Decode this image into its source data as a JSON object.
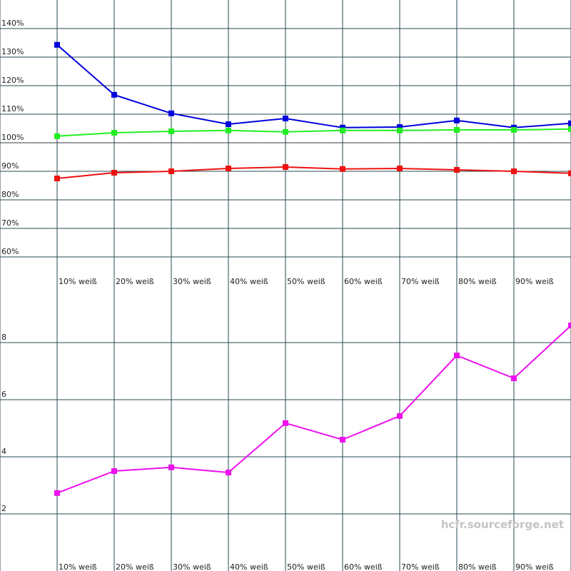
{
  "chart_data": [
    {
      "type": "line",
      "categories": [
        "10% weiß",
        "20% weiß",
        "30% weiß",
        "40% weiß",
        "50% weiß",
        "60% weiß",
        "70% weiß",
        "80% weiß",
        "90% weiß",
        null
      ],
      "ylim": [
        60,
        150
      ],
      "yticks": [
        {
          "value": 60,
          "label": "60%"
        },
        {
          "value": 70,
          "label": "70%"
        },
        {
          "value": 80,
          "label": "80%"
        },
        {
          "value": 90,
          "label": "90%"
        },
        {
          "value": 100,
          "label": "100%"
        },
        {
          "value": 110,
          "label": "110%"
        },
        {
          "value": 120,
          "label": "120%"
        },
        {
          "value": 130,
          "label": "130%"
        },
        {
          "value": 140,
          "label": "140%"
        }
      ],
      "reference_line": 100,
      "grid": true,
      "series": [
        {
          "color": "#0000dd",
          "values": [
            134.3,
            116.8,
            110.3,
            106.5,
            108.5,
            105.3,
            105.5,
            107.8,
            105.3,
            106.8
          ]
        },
        {
          "color": "#22ee22",
          "values": [
            102.3,
            103.5,
            104,
            104.3,
            103.8,
            104.3,
            104.3,
            104.5,
            104.5,
            104.8
          ]
        },
        {
          "color": "#ee1111",
          "values": [
            87.5,
            89.5,
            90,
            91,
            91.5,
            90.8,
            91,
            90.5,
            90,
            89.3
          ]
        }
      ]
    },
    {
      "type": "line",
      "categories": [
        "10% weiß",
        "20% weiß",
        "30% weiß",
        "40% weiß",
        "50% weiß",
        "60% weiß",
        "70% weiß",
        "80% weiß",
        "90% weiß",
        null
      ],
      "ylim": [
        1,
        10
      ],
      "yticks": [
        2,
        4,
        6,
        8
      ],
      "grid": true,
      "series": [
        {
          "color": "#ee11ee",
          "values": [
            2.73,
            3.5,
            3.63,
            3.45,
            5.18,
            4.6,
            5.43,
            7.55,
            6.75,
            8.6
          ]
        }
      ]
    }
  ],
  "watermark": "hcfr.sourceforge.net"
}
